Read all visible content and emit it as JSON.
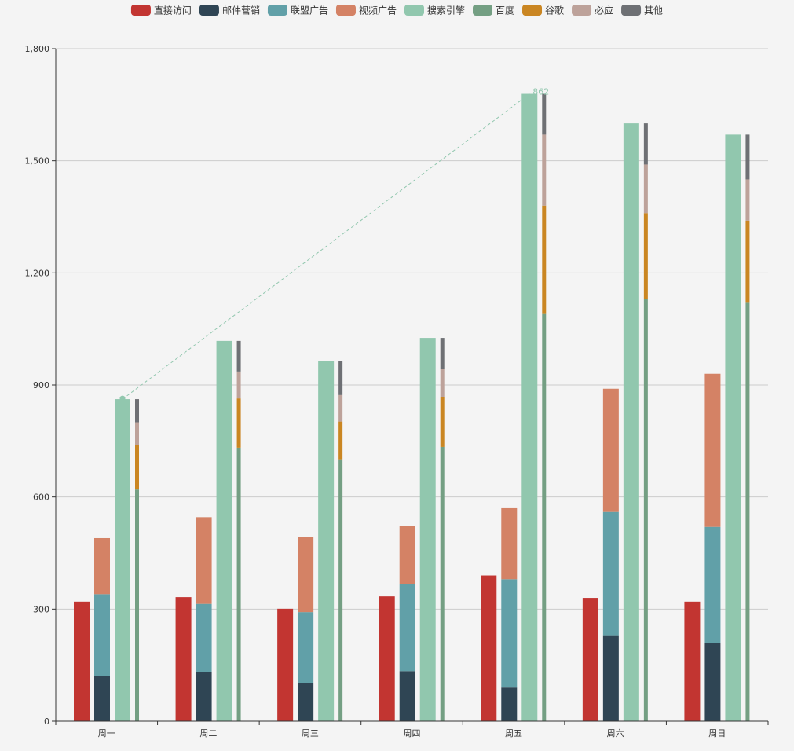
{
  "chart_data": {
    "type": "bar",
    "title": "",
    "xlabel": "",
    "ylabel": "",
    "categories": [
      "周一",
      "周二",
      "周三",
      "周四",
      "周五",
      "周六",
      "周日"
    ],
    "ylim": [
      0,
      1800
    ],
    "yticks": [
      0,
      300,
      600,
      900,
      1200,
      1500,
      1800
    ],
    "yticks_labels": [
      "0",
      "300",
      "600",
      "900",
      "1,200",
      "1,500",
      "1,800"
    ],
    "grid": true,
    "legend_position": "top-center",
    "groups": [
      {
        "key": "direct",
        "series": [
          "直接访问"
        ],
        "width": "wide"
      },
      {
        "key": "ad",
        "series": [
          "邮件营销",
          "联盟广告",
          "视频广告"
        ],
        "width": "wide"
      },
      {
        "key": "search",
        "series": [
          "搜索引擎"
        ],
        "width": "wide"
      },
      {
        "key": "search-detail",
        "series": [
          "百度",
          "谷歌",
          "必应",
          "其他"
        ],
        "width": "narrow"
      }
    ],
    "series": [
      {
        "name": "直接访问",
        "color": "#c23531",
        "values": [
          320,
          332,
          301,
          334,
          390,
          330,
          320
        ]
      },
      {
        "name": "邮件营销",
        "color": "#2f4554",
        "values": [
          120,
          132,
          101,
          134,
          90,
          230,
          210
        ]
      },
      {
        "name": "联盟广告",
        "color": "#61a0a8",
        "values": [
          220,
          182,
          191,
          234,
          290,
          330,
          310
        ]
      },
      {
        "name": "视频广告",
        "color": "#d48265",
        "values": [
          150,
          232,
          201,
          154,
          190,
          330,
          410
        ]
      },
      {
        "name": "搜索引擎",
        "color": "#91c7ae",
        "values": [
          862,
          1018,
          964,
          1026,
          1679,
          1600,
          1570
        ]
      },
      {
        "name": "百度",
        "color": "#749f83",
        "values": [
          620,
          732,
          701,
          734,
          1090,
          1130,
          1120
        ]
      },
      {
        "name": "谷歌",
        "color": "#ca8622",
        "values": [
          120,
          132,
          101,
          134,
          290,
          230,
          220
        ]
      },
      {
        "name": "必应",
        "color": "#bda29a",
        "values": [
          60,
          72,
          71,
          74,
          190,
          130,
          110
        ]
      },
      {
        "name": "其他",
        "color": "#6e7074",
        "values": [
          62,
          82,
          91,
          84,
          109,
          110,
          120
        ]
      }
    ],
    "mark_line": {
      "series": "搜索引擎",
      "from_category": "周一",
      "to_category": "周五",
      "from_value": 862,
      "to_value": 1679,
      "end_label": "862",
      "color": "#91c7ae"
    }
  }
}
